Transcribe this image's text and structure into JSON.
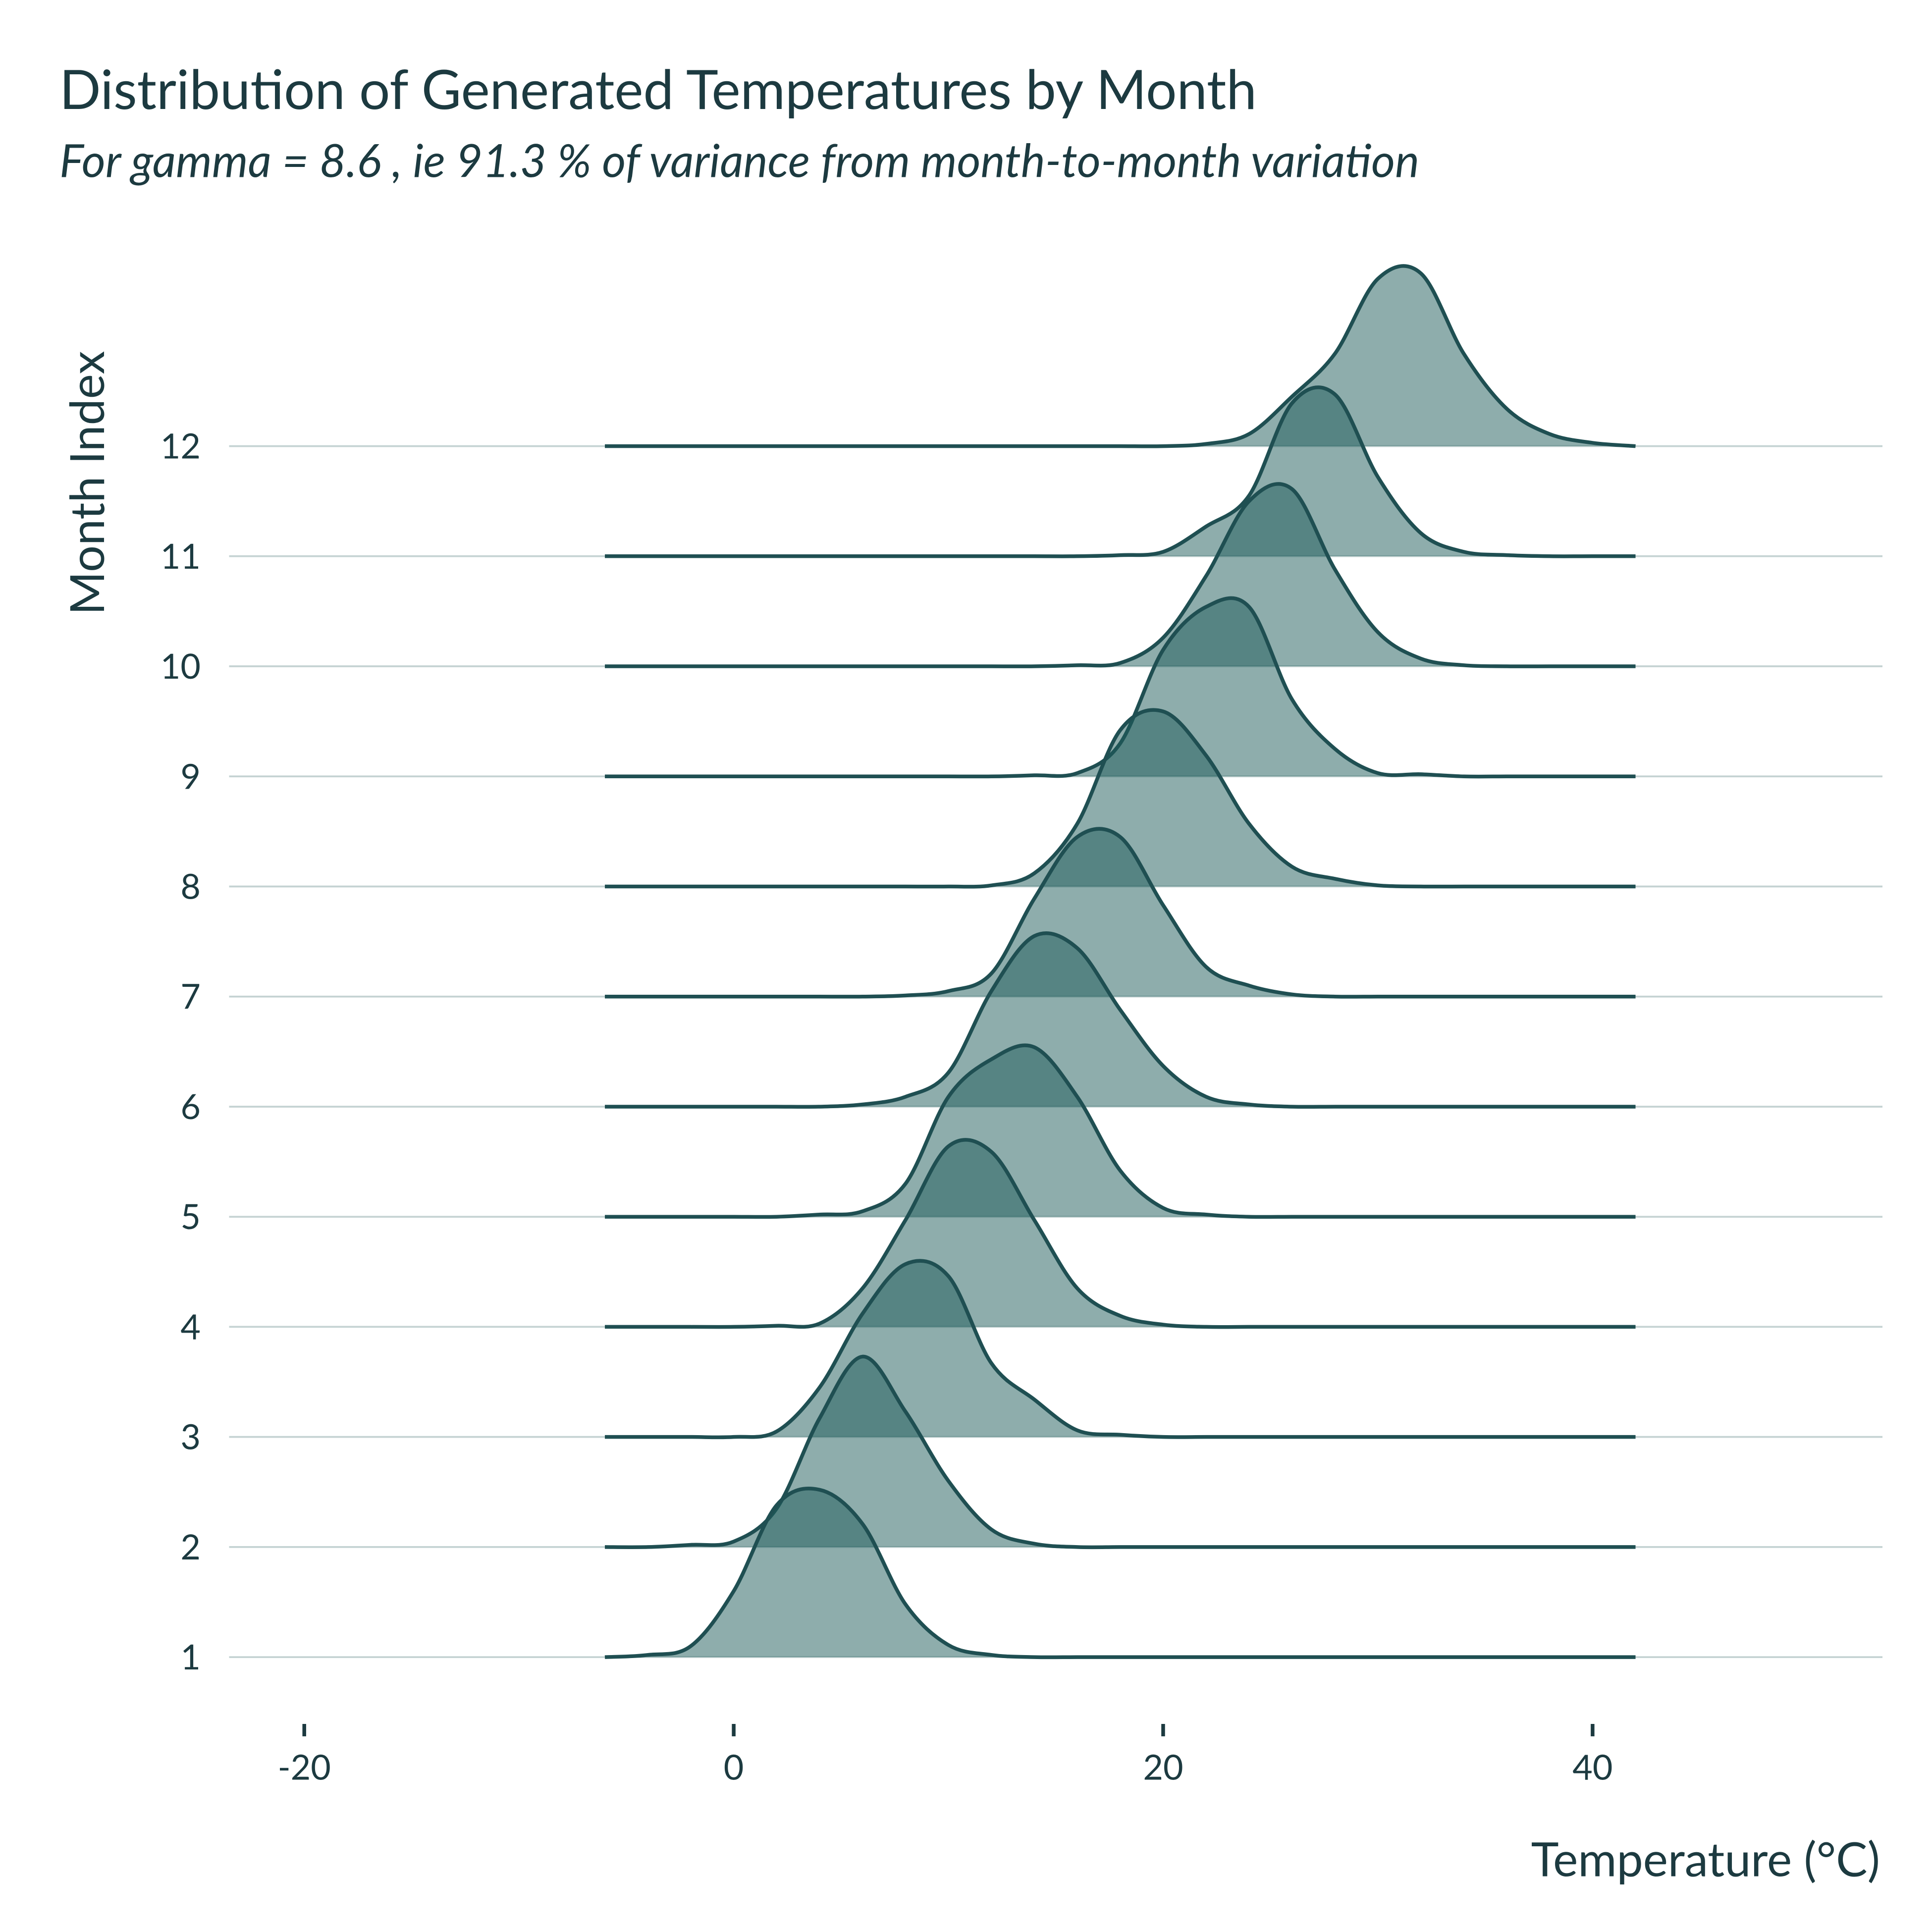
{
  "chart_data": {
    "type": "ridgeline",
    "title": "Distribution of Generated Temperatures by Month",
    "subtitle": "For gamma = 8.6 , ie 91.3 % of variance from month-to-month variation",
    "x_label": "Temperature (°C)",
    "y_label": "Month Index",
    "fill_color": "#1d5c5a",
    "line_color": "#1f4f52",
    "grid_color": "#c5d3d3",
    "xlim": [
      -23.5,
      53.5
    ],
    "ylim": [
      0.5,
      13.6
    ],
    "xticks": [
      -20,
      0,
      20,
      40
    ],
    "yticks": [
      1,
      2,
      3,
      4,
      5,
      6,
      7,
      8,
      9,
      10,
      11,
      12
    ],
    "grid": true,
    "x": [
      -6,
      -4,
      -2,
      0,
      2,
      4,
      6,
      8,
      10,
      12,
      14,
      16,
      18,
      20,
      22,
      24,
      26,
      28,
      30,
      32,
      34,
      36,
      38,
      40,
      42
    ],
    "series": [
      {
        "baseline": 1,
        "values": [
          0,
          0.02,
          0.1,
          0.6,
          1.38,
          1.52,
          1.21,
          0.48,
          0.11,
          0.02,
          0,
          0,
          0,
          0,
          0,
          0,
          0,
          0,
          0,
          0,
          0,
          0,
          0,
          0,
          0
        ]
      },
      {
        "baseline": 2,
        "values": [
          0,
          0,
          0.02,
          0.05,
          0.35,
          1.17,
          1.73,
          1.23,
          0.6,
          0.16,
          0.03,
          0,
          0,
          0,
          0,
          0,
          0,
          0,
          0,
          0,
          0,
          0,
          0,
          0,
          0
        ]
      },
      {
        "baseline": 3,
        "values": [
          0,
          0,
          0,
          0,
          0.05,
          0.45,
          1.12,
          1.57,
          1.46,
          0.67,
          0.34,
          0.06,
          0.02,
          0,
          0,
          0,
          0,
          0,
          0,
          0,
          0,
          0,
          0,
          0,
          0
        ]
      },
      {
        "baseline": 4,
        "values": [
          0,
          0,
          0,
          0,
          0.01,
          0.03,
          0.35,
          0.97,
          1.64,
          1.59,
          0.97,
          0.35,
          0.1,
          0.02,
          0,
          0,
          0,
          0,
          0,
          0,
          0,
          0,
          0,
          0,
          0
        ]
      },
      {
        "baseline": 5,
        "values": [
          0,
          0,
          0,
          0,
          0,
          0.02,
          0.05,
          0.3,
          1.09,
          1.43,
          1.54,
          1.09,
          0.42,
          0.08,
          0.02,
          0,
          0,
          0,
          0,
          0,
          0,
          0,
          0,
          0,
          0
        ]
      },
      {
        "baseline": 6,
        "values": [
          0,
          0,
          0,
          0,
          0,
          0,
          0.02,
          0.09,
          0.31,
          1.05,
          1.55,
          1.44,
          0.88,
          0.37,
          0.09,
          0.02,
          0,
          0,
          0,
          0,
          0,
          0,
          0,
          0,
          0
        ]
      },
      {
        "baseline": 7,
        "values": [
          0,
          0,
          0,
          0,
          0,
          0,
          0,
          0.01,
          0.05,
          0.21,
          0.89,
          1.45,
          1.45,
          0.83,
          0.27,
          0.1,
          0.02,
          0,
          0,
          0,
          0,
          0,
          0,
          0,
          0
        ]
      },
      {
        "baseline": 8,
        "values": [
          0,
          0,
          0,
          0,
          0,
          0,
          0,
          0,
          0,
          0.01,
          0.12,
          0.57,
          1.42,
          1.59,
          1.19,
          0.57,
          0.18,
          0.07,
          0.01,
          0,
          0,
          0,
          0,
          0,
          0
        ]
      },
      {
        "baseline": 9,
        "values": [
          0,
          0,
          0,
          0,
          0,
          0,
          0,
          0,
          0,
          0,
          0.01,
          0.03,
          0.3,
          1.15,
          1.54,
          1.54,
          0.7,
          0.25,
          0.03,
          0.02,
          0,
          0,
          0,
          0,
          0
        ]
      },
      {
        "baseline": 10,
        "values": [
          0,
          0,
          0,
          0,
          0,
          0,
          0,
          0,
          0,
          0,
          0,
          0.01,
          0.03,
          0.26,
          0.82,
          1.5,
          1.61,
          0.88,
          0.31,
          0.07,
          0.01,
          0,
          0,
          0,
          0
        ]
      },
      {
        "baseline": 11,
        "values": [
          0,
          0,
          0,
          0,
          0,
          0,
          0,
          0,
          0,
          0,
          0,
          0,
          0.01,
          0.04,
          0.27,
          0.55,
          1.39,
          1.47,
          0.72,
          0.21,
          0.04,
          0.01,
          0,
          0,
          0
        ]
      },
      {
        "baseline": 12,
        "values": [
          0,
          0,
          0,
          0,
          0,
          0,
          0,
          0,
          0,
          0,
          0,
          0,
          0,
          0,
          0.02,
          0.11,
          0.45,
          0.84,
          1.52,
          1.57,
          0.84,
          0.34,
          0.11,
          0.03,
          0
        ]
      }
    ]
  }
}
